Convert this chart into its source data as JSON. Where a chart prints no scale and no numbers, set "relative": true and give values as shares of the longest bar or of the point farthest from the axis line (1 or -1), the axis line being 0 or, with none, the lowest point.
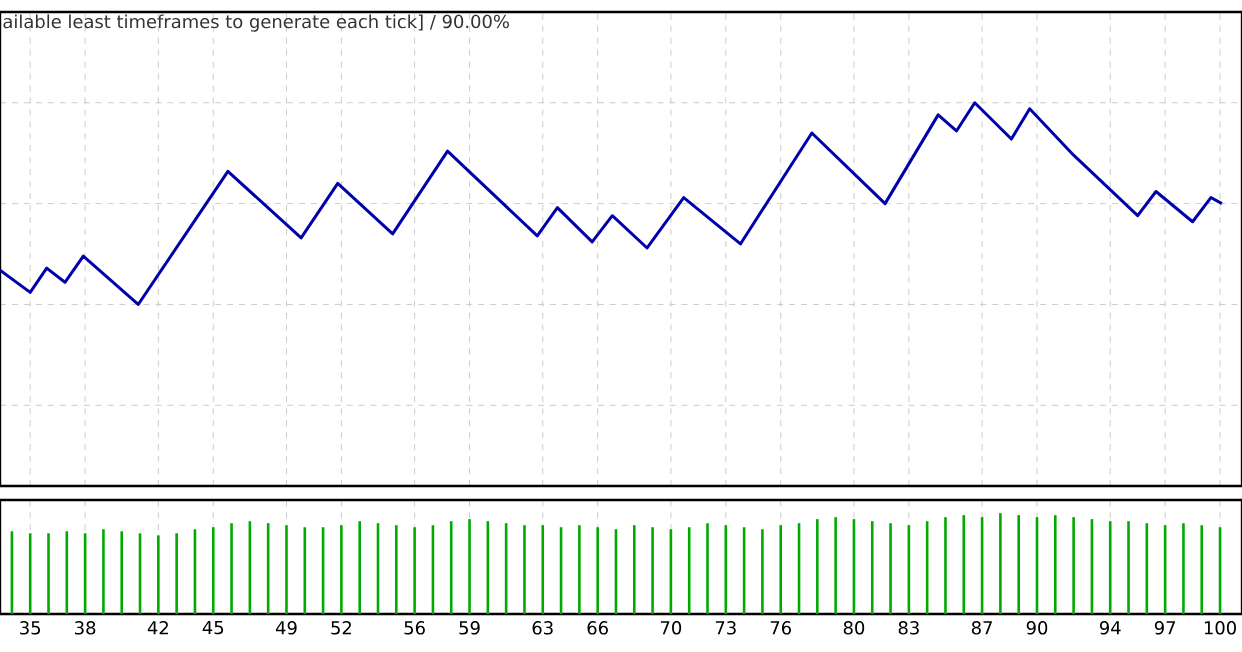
{
  "chart_data": [
    {
      "type": "line",
      "relative": true,
      "color": "#0000aa",
      "marker": "none",
      "grid": true,
      "tick_labels": false,
      "annotations": [
        "ailable least timeframes to generate each tick] / 90.00%"
      ],
      "xlim": [
        33.35,
        101.2
      ],
      "xticks": [
        35,
        38,
        42,
        45,
        49,
        52,
        56,
        59,
        63,
        66,
        70,
        73,
        76,
        80,
        83,
        87,
        90,
        94,
        97,
        100
      ],
      "x": [
        33.35,
        35,
        35.9,
        36.9,
        37.9,
        40.9,
        45.8,
        49.8,
        51.8,
        54.8,
        57.8,
        59.2,
        62.7,
        63.8,
        65.7,
        66.8,
        68.7,
        70.7,
        73.8,
        77.7,
        80.1,
        81.7,
        84.6,
        85.6,
        86.6,
        88.6,
        89.6,
        92,
        95.5,
        96.5,
        98.5,
        99.5,
        100.1
      ],
      "values": [
        0.17,
        0.06,
        0.18,
        0.11,
        0.24,
        0,
        0.66,
        0.33,
        0.6,
        0.35,
        0.76,
        0.64,
        0.34,
        0.48,
        0.31,
        0.44,
        0.28,
        0.53,
        0.3,
        0.85,
        0.64,
        0.5,
        0.94,
        0.86,
        1,
        0.82,
        0.97,
        0.74,
        0.44,
        0.56,
        0.41,
        0.53,
        0.5
      ]
    },
    {
      "type": "bar",
      "relative": true,
      "color": "#00aa00",
      "grid": "x",
      "tick_labels": "x",
      "xlim": [
        33.35,
        101.2
      ],
      "xticks": [
        35,
        38,
        42,
        45,
        49,
        52,
        56,
        59,
        63,
        66,
        70,
        73,
        76,
        80,
        83,
        87,
        90,
        94,
        97,
        100
      ],
      "x": [
        34,
        35,
        36,
        37,
        38,
        39,
        40,
        41,
        42,
        43,
        44,
        45,
        46,
        47,
        48,
        49,
        50,
        51,
        52,
        53,
        54,
        55,
        56,
        57,
        58,
        59,
        60,
        61,
        62,
        63,
        64,
        65,
        66,
        67,
        68,
        69,
        70,
        71,
        72,
        73,
        74,
        75,
        76,
        77,
        78,
        79,
        80,
        81,
        82,
        83,
        84,
        85,
        86,
        87,
        88,
        89,
        90,
        91,
        92,
        93,
        94,
        95,
        96,
        97,
        98,
        99,
        100
      ],
      "values": [
        0.82,
        0.8,
        0.8,
        0.82,
        0.8,
        0.84,
        0.82,
        0.8,
        0.78,
        0.8,
        0.84,
        0.86,
        0.9,
        0.92,
        0.9,
        0.88,
        0.86,
        0.86,
        0.88,
        0.92,
        0.9,
        0.88,
        0.86,
        0.88,
        0.92,
        0.94,
        0.92,
        0.9,
        0.88,
        0.88,
        0.86,
        0.88,
        0.86,
        0.84,
        0.88,
        0.86,
        0.84,
        0.86,
        0.9,
        0.88,
        0.86,
        0.84,
        0.88,
        0.9,
        0.94,
        0.96,
        0.94,
        0.92,
        0.9,
        0.88,
        0.92,
        0.96,
        0.98,
        0.96,
        1,
        0.98,
        0.96,
        0.98,
        0.96,
        0.94,
        0.92,
        0.92,
        0.9,
        0.88,
        0.9,
        0.88,
        0.86
      ]
    }
  ]
}
